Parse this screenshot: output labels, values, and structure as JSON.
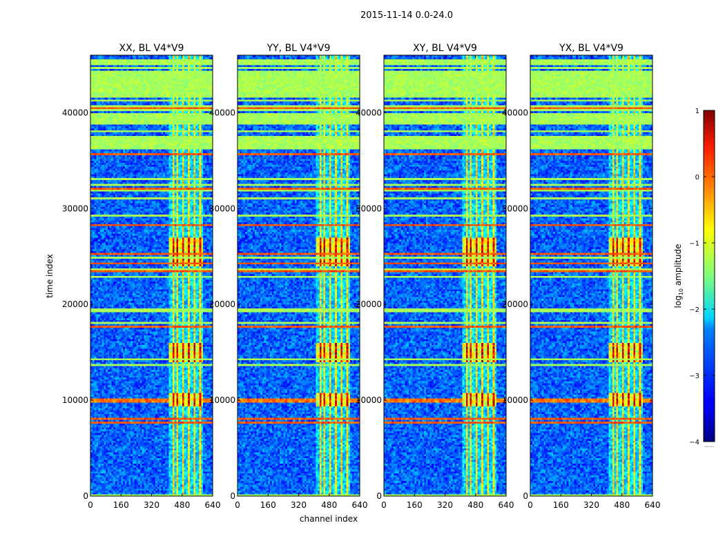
{
  "figure": {
    "suptitle": "2015-11-14 0.0-24.0"
  },
  "chart_data": {
    "type": "heatmap",
    "xlabel": "channel index",
    "ylabel": "time index",
    "xlim": [
      0,
      640
    ],
    "ylim": [
      0,
      46000
    ],
    "x_ticks": [
      0,
      160,
      320,
      480,
      640
    ],
    "y_ticks": [
      0,
      10000,
      20000,
      30000,
      40000
    ],
    "panels": [
      {
        "title": "XX, BL V4*V9"
      },
      {
        "title": "YY, BL V4*V9"
      },
      {
        "title": "XY, BL V4*V9"
      },
      {
        "title": "YX, BL V4*V9"
      }
    ],
    "rfi_channel_band": [
      405,
      595
    ],
    "flagged_time_band": [
      36200,
      37600
    ],
    "colorbar": {
      "label": "log10 amplitude",
      "label_base": "log",
      "label_sub": "10",
      "label_rest": " amplitude",
      "range": [
        -4,
        1
      ],
      "ticks": [
        1,
        0,
        -1,
        -2,
        -3,
        -4
      ],
      "tick_labels": [
        "1",
        "0",
        "−1",
        "−2",
        "−3",
        "−4"
      ],
      "colormap": "jet",
      "under_label": "……"
    }
  }
}
